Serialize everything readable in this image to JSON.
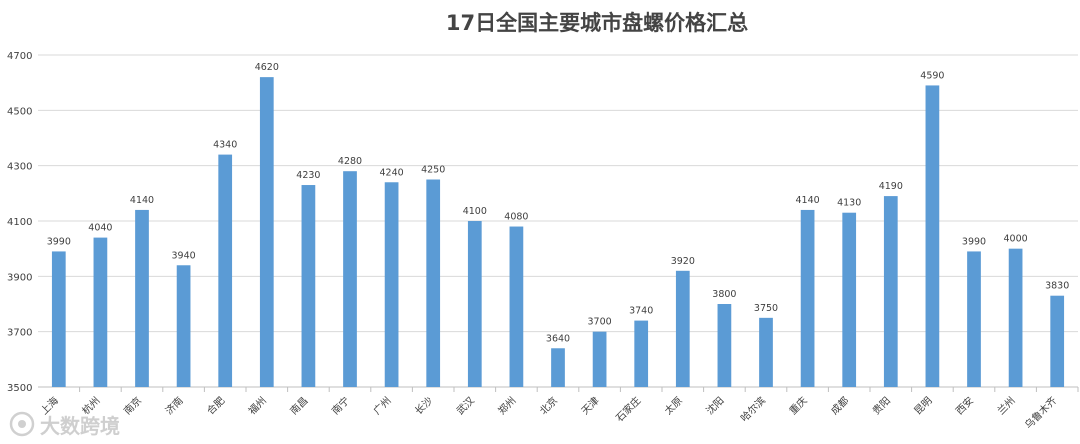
{
  "chart_data": {
    "type": "bar",
    "title": "17日全国主要城市盘螺价格汇总",
    "xlabel": "",
    "ylabel": "",
    "ylim": [
      3500,
      4700
    ],
    "yticks": [
      3500,
      3700,
      3900,
      4100,
      4300,
      4500,
      4700
    ],
    "grid": true,
    "bar_color": "#5b9bd5",
    "categories": [
      "上海",
      "杭州",
      "南京",
      "济南",
      "合肥",
      "福州",
      "南昌",
      "南宁",
      "广州",
      "长沙",
      "武汉",
      "郑州",
      "北京",
      "天津",
      "石家庄",
      "太原",
      "沈阳",
      "哈尔滨",
      "重庆",
      "成都",
      "贵阳",
      "昆明",
      "西安",
      "兰州",
      "乌鲁木齐"
    ],
    "values": [
      3990,
      4040,
      4140,
      3940,
      4340,
      4620,
      4230,
      4280,
      4240,
      4250,
      4100,
      4080,
      3640,
      3700,
      3740,
      3920,
      3800,
      3750,
      4140,
      4130,
      4190,
      4590,
      3990,
      4000,
      3830
    ]
  },
  "watermark": {
    "text": "大数跨境",
    "icon": "brand-logo-icon"
  }
}
